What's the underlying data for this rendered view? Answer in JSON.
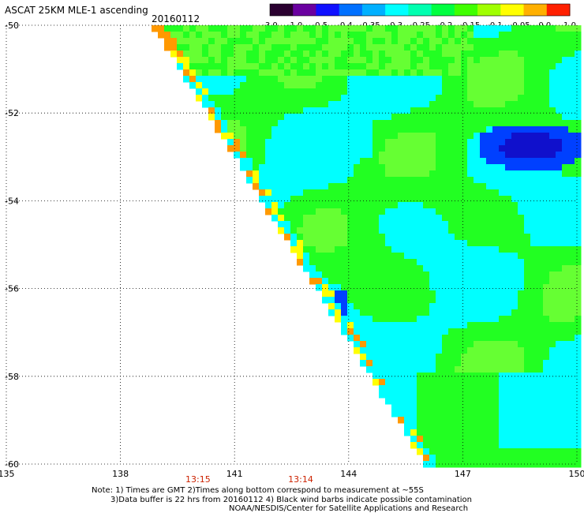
{
  "header": {
    "title": "ASCAT 25KM MLE-1 ascending",
    "date": "20160112"
  },
  "colorbar": {
    "tick_labels": [
      "-3.0",
      "-1.0",
      "-0.5",
      "-0.4",
      "-0.35",
      "-0.3",
      "-0.25",
      "-0.2",
      "-0.15",
      "-0.1",
      "-0.05",
      "0.0",
      "1.0"
    ],
    "colors": [
      "#2a0030",
      "#6a00a0",
      "#1010ff",
      "#0070ff",
      "#00b0ff",
      "#00ffff",
      "#00ffb0",
      "#00ff40",
      "#40ff00",
      "#a0ff00",
      "#ffff00",
      "#ffb000",
      "#ff2000"
    ]
  },
  "map": {
    "lon_range": [
      135,
      150
    ],
    "lat_range": [
      -60,
      -50
    ],
    "lon_ticks": [
      "135",
      "138",
      "141",
      "144",
      "147",
      "150"
    ],
    "lat_ticks": [
      "-50",
      "-52",
      "-54",
      "-56",
      "-58",
      "-60"
    ],
    "colors": {
      "cyan": "#00ffff",
      "green": "#22ff22",
      "light_green": "#66ff33",
      "yellow_green": "#aaff00",
      "blue": "#0040ff",
      "dark_blue": "#1010cc",
      "yellow": "#ffff00",
      "orange": "#ff9900"
    }
  },
  "times": [
    {
      "label": "13:15",
      "lon": 140.0
    },
    {
      "label": "13:14",
      "lon": 142.7
    }
  ],
  "notes": {
    "line1": "Note: 1) Times are GMT 2)Times along bottom correspond to measurement at ~55S",
    "line2": "3)Data buffer is 22 hrs from 20160112 4) Black wind barbs indicate possible contamination",
    "line3": "NOAA/NESDIS/Center for Satellite Applications and Research"
  }
}
